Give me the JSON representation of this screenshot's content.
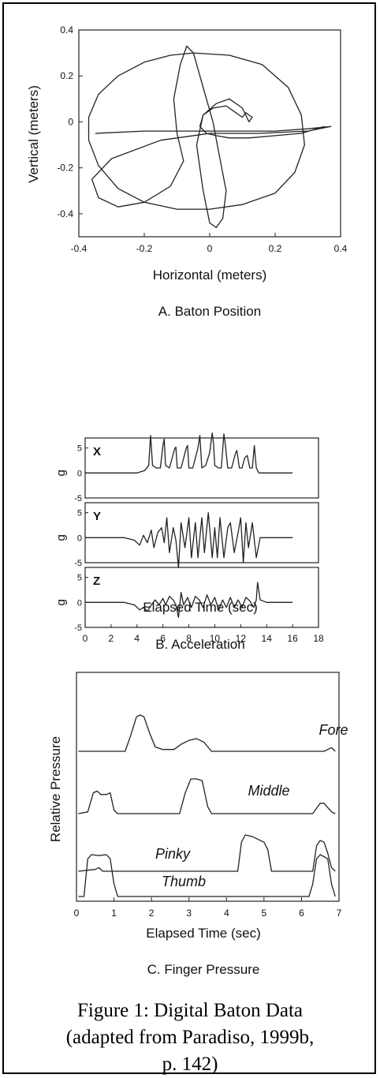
{
  "figure": {
    "caption_lines": [
      "Figure 1: Digital Baton Data",
      "(adapted from Paradiso, 1999b,",
      "p. 142)"
    ]
  },
  "chart_data": [
    {
      "id": "A",
      "type": "line",
      "title": "A. Baton Position",
      "xlabel": "Horizontal (meters)",
      "ylabel": "Vertical (meters)",
      "xlim": [
        -0.4,
        0.4
      ],
      "ylim": [
        -0.5,
        0.4
      ],
      "xticks": [
        "-0.4",
        "-0.2",
        "0",
        "0.2",
        "0.4"
      ],
      "yticks": [
        "0.4",
        "0.2",
        "0",
        "-0.2",
        "-0.4"
      ],
      "series": [
        {
          "x": [
            -0.05,
            -0.12,
            -0.2,
            -0.28,
            -0.34,
            -0.37,
            -0.37,
            -0.34,
            -0.28,
            -0.2,
            -0.1,
            0.0,
            0.1,
            0.2,
            0.26,
            0.29,
            0.28,
            0.24,
            0.16,
            0.06,
            -0.05
          ],
          "y": [
            0.3,
            0.29,
            0.26,
            0.2,
            0.12,
            0.02,
            -0.08,
            -0.19,
            -0.29,
            -0.35,
            -0.38,
            -0.38,
            -0.36,
            -0.31,
            -0.22,
            -0.1,
            0.03,
            0.15,
            0.25,
            0.29,
            0.3
          ]
        },
        {
          "x": [
            -0.35,
            -0.2,
            -0.05,
            0.1,
            0.2,
            0.3,
            0.37,
            0.3,
            0.15,
            0.0,
            -0.15,
            -0.3,
            -0.36,
            -0.34,
            -0.28,
            -0.2,
            -0.12,
            -0.08,
            -0.1,
            -0.11,
            -0.09,
            -0.07,
            -0.05,
            -0.02,
            0.01,
            0.03,
            0.05,
            0.04,
            0.02,
            0.0,
            -0.02,
            -0.04,
            -0.02,
            0.02,
            0.06,
            0.1,
            0.12,
            0.13,
            0.11,
            0.1,
            0.08,
            0.05,
            0.01,
            -0.02,
            -0.03,
            -0.01,
            0.02,
            0.06,
            0.12,
            0.2,
            0.28,
            0.35
          ],
          "y": [
            -0.05,
            -0.04,
            -0.04,
            -0.04,
            -0.04,
            -0.03,
            -0.02,
            -0.04,
            -0.05,
            -0.05,
            -0.08,
            -0.16,
            -0.25,
            -0.33,
            -0.37,
            -0.35,
            -0.28,
            -0.17,
            -0.05,
            0.1,
            0.25,
            0.33,
            0.3,
            0.15,
            0.0,
            -0.15,
            -0.3,
            -0.42,
            -0.46,
            -0.44,
            -0.3,
            -0.1,
            0.03,
            0.08,
            0.1,
            0.06,
            0.0,
            0.02,
            0.04,
            0.02,
            0.04,
            0.07,
            0.06,
            0.03,
            -0.02,
            -0.05,
            -0.06,
            -0.07,
            -0.07,
            -0.06,
            -0.05,
            -0.02
          ]
        }
      ]
    },
    {
      "id": "B",
      "type": "line",
      "title": "B. Acceleration",
      "xlabel": "Elapsed Time (sec)",
      "ylabel": "g",
      "xlim": [
        0,
        18
      ],
      "ylim": [
        -5,
        7
      ],
      "xticks": [
        "0",
        "2",
        "4",
        "6",
        "8",
        "10",
        "12",
        "14",
        "16",
        "18"
      ],
      "yticks": [
        "5",
        "0",
        "-5"
      ],
      "panels": [
        {
          "label": "X",
          "x": [
            0,
            1,
            2,
            3,
            4,
            4.6,
            4.9,
            5.05,
            5.2,
            5.5,
            5.8,
            6.0,
            6.1,
            6.2,
            6.5,
            6.9,
            7.0,
            7.1,
            7.4,
            7.8,
            7.9,
            8.0,
            8.3,
            8.7,
            8.85,
            9.0,
            9.3,
            9.6,
            9.8,
            9.9,
            10.0,
            10.3,
            10.5,
            10.7,
            10.8,
            11.0,
            11.3,
            11.6,
            11.7,
            11.9,
            12.1,
            12.3,
            12.5,
            12.7,
            12.9,
            13.05,
            13.2,
            13.4,
            14,
            16
          ],
          "y": [
            0,
            0,
            0,
            0,
            0,
            0.5,
            1.5,
            7.5,
            1.5,
            1,
            1,
            5.5,
            6.8,
            1.5,
            1,
            4.8,
            5.2,
            1,
            1,
            5,
            5.5,
            1,
            1,
            5,
            7.5,
            1,
            1.5,
            4,
            8,
            6,
            1.5,
            1,
            1,
            7.8,
            6,
            1,
            1,
            4,
            4.5,
            1,
            1,
            3,
            3.5,
            1,
            1,
            5.5,
            1,
            0,
            0,
            0
          ]
        },
        {
          "label": "Y",
          "x": [
            0,
            1,
            2,
            3,
            3.8,
            4.2,
            4.5,
            4.8,
            5.1,
            5.3,
            5.6,
            5.9,
            6.1,
            6.3,
            6.5,
            6.8,
            7.0,
            7.2,
            7.4,
            7.7,
            8.0,
            8.2,
            8.5,
            8.7,
            9.0,
            9.2,
            9.5,
            9.8,
            10.0,
            10.2,
            10.4,
            10.7,
            11.0,
            11.2,
            11.5,
            11.8,
            12.0,
            12.2,
            12.4,
            12.6,
            12.9,
            13.2,
            13.5,
            14,
            16
          ],
          "y": [
            0,
            0,
            0,
            0,
            -0.5,
            -1.5,
            0.5,
            -1,
            1.5,
            -2,
            1,
            2,
            -1,
            4,
            -3,
            2,
            -0.5,
            -6,
            3,
            -2,
            4,
            -4,
            3,
            -4,
            4,
            -3,
            5,
            -4,
            2,
            -4,
            4,
            -4,
            2,
            3,
            -3,
            1,
            4,
            -5,
            3,
            -2,
            3,
            -4,
            0,
            0,
            0
          ]
        },
        {
          "label": "Z",
          "x": [
            0,
            1,
            2,
            3,
            3.8,
            4.2,
            4.5,
            4.8,
            5.1,
            5.4,
            5.7,
            6.0,
            6.2,
            6.5,
            6.8,
            7.0,
            7.2,
            7.4,
            7.6,
            7.9,
            8.2,
            8.5,
            8.8,
            9.1,
            9.4,
            9.7,
            10.0,
            10.3,
            10.6,
            10.9,
            11.2,
            11.5,
            11.8,
            12.1,
            12.4,
            12.7,
            13.0,
            13.2,
            13.3,
            13.5,
            14,
            16
          ],
          "y": [
            0,
            0,
            0,
            0,
            -0.5,
            -1.5,
            -1,
            -1.8,
            -0.5,
            0.5,
            -0.5,
            0.8,
            -0.5,
            1.2,
            0.5,
            -0.5,
            -3,
            2,
            -0.5,
            1,
            -1,
            1.2,
            0.5,
            -1,
            1.5,
            -0.5,
            1,
            -1.5,
            0.5,
            -1,
            1,
            -1,
            0.5,
            -1,
            1,
            0.3,
            -1,
            0.5,
            4,
            0.5,
            0,
            0
          ]
        }
      ]
    },
    {
      "id": "C",
      "type": "line",
      "title": "C. Finger Pressure",
      "xlabel": "Elapsed Time (sec)",
      "ylabel": "Relative Pressure",
      "xlim": [
        0,
        7
      ],
      "xticks": [
        "0",
        "1",
        "2",
        "3",
        "4",
        "5",
        "6",
        "7"
      ],
      "series": [
        {
          "name": "Fore",
          "x": [
            0.05,
            1.3,
            1.45,
            1.6,
            1.7,
            1.8,
            1.95,
            2.1,
            2.3,
            2.6,
            2.8,
            3.0,
            3.2,
            3.4,
            3.6,
            6.6,
            6.8,
            6.9
          ],
          "y": [
            0,
            0,
            0.45,
            0.95,
            1,
            0.95,
            0.5,
            0.12,
            0.05,
            0.05,
            0.2,
            0.3,
            0.35,
            0.25,
            0,
            0,
            0.1,
            0
          ]
        },
        {
          "name": "Middle",
          "x": [
            0.05,
            0.3,
            0.45,
            0.55,
            0.65,
            0.8,
            0.9,
            1.0,
            1.1,
            2.75,
            2.9,
            3.05,
            3.2,
            3.35,
            3.5,
            3.6,
            6.3,
            6.5,
            6.6,
            6.8,
            6.9
          ],
          "y": [
            0,
            0.05,
            0.6,
            0.65,
            0.55,
            0.55,
            0.6,
            0.1,
            0,
            0,
            0.6,
            1,
            1,
            0.95,
            0.2,
            0,
            0,
            0.3,
            0.3,
            0.05,
            0
          ]
        },
        {
          "name": "Pinky",
          "x": [
            0.05,
            0.5,
            0.6,
            0.7,
            4.3,
            4.4,
            4.5,
            4.7,
            4.9,
            5.0,
            5.1,
            5.2,
            6.3,
            6.4,
            6.5,
            6.6,
            6.7,
            6.8,
            6.9
          ],
          "y": [
            0,
            0.05,
            0.1,
            0,
            0,
            0.8,
            1,
            0.95,
            0.85,
            0.8,
            0.6,
            0,
            0,
            0.7,
            0.85,
            0.8,
            0.5,
            0.1,
            0
          ]
        },
        {
          "name": "Thumb",
          "x": [
            0.05,
            0.2,
            0.3,
            0.4,
            0.6,
            0.8,
            0.9,
            1.0,
            1.1,
            6.2,
            6.3,
            6.4,
            6.5,
            6.7,
            6.8,
            6.9
          ],
          "y": [
            0,
            0,
            0.9,
            1,
            0.98,
            1,
            0.9,
            0.3,
            0,
            0,
            0.3,
            0.9,
            1,
            0.9,
            0.3,
            0
          ]
        }
      ]
    }
  ]
}
